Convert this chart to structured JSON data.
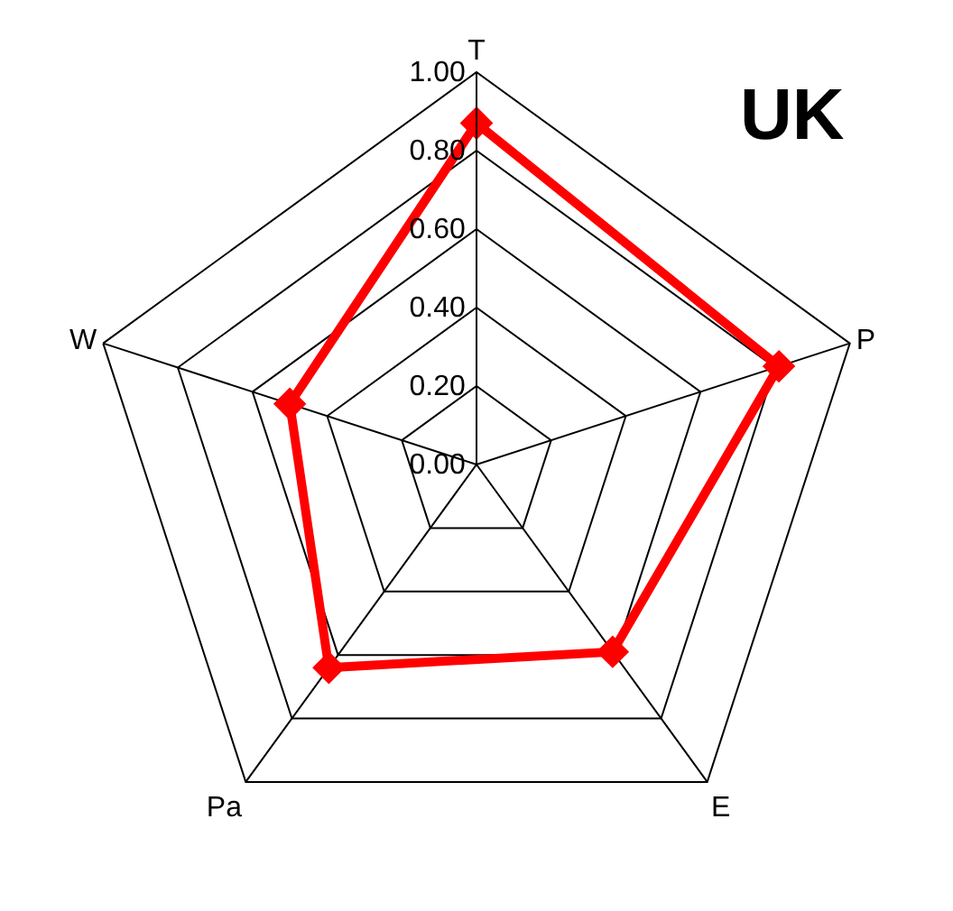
{
  "chart_data": {
    "type": "radar",
    "title": "UK",
    "categories": [
      "T",
      "P",
      "E",
      "Pa",
      "W"
    ],
    "series": [
      {
        "color": "#ff0000",
        "values": [
          0.87,
          0.81,
          0.59,
          0.64,
          0.5
        ]
      }
    ],
    "ylim": [
      0,
      1
    ],
    "yticks": [
      {
        "value": 0,
        "label": "0.00"
      },
      {
        "value": 0.2,
        "label": "0.20"
      },
      {
        "value": 0.4,
        "label": "0.40"
      },
      {
        "value": 0.6,
        "label": "0.60"
      },
      {
        "value": 0.8,
        "label": "0.80"
      },
      {
        "value": 1,
        "label": "1.00"
      }
    ],
    "grid": true,
    "marker": "diamond",
    "line_style": "solid"
  }
}
